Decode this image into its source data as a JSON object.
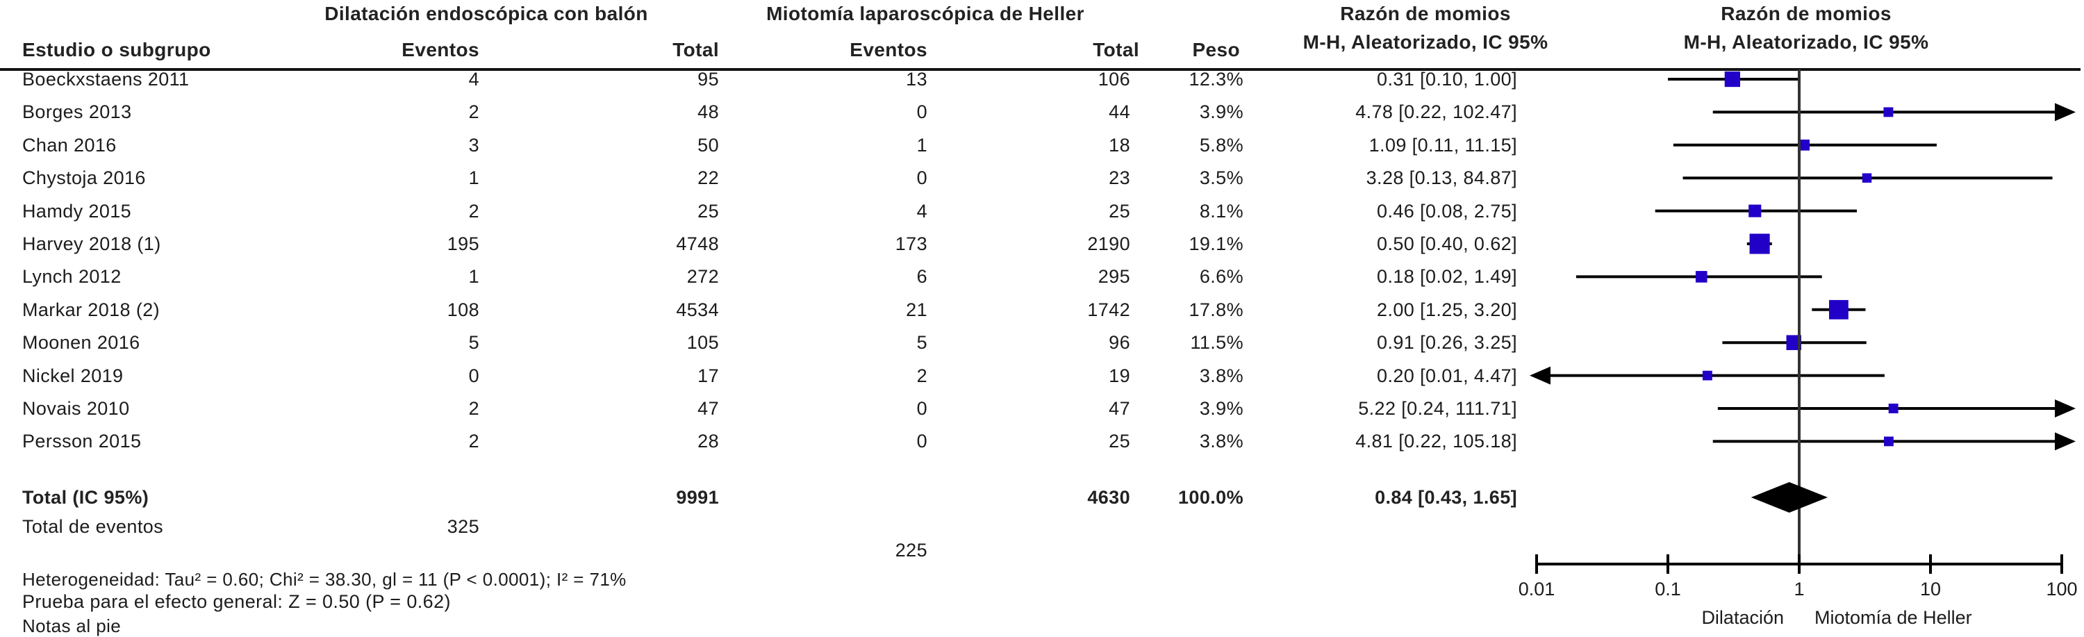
{
  "header": {
    "group1": "Dilatación endoscópica con balón",
    "group2": "Miotomía laparoscópica de Heller",
    "study_col": "Estudio o subgrupo",
    "events_col1": "Eventos",
    "total_col1": "Total",
    "events_col2": "Eventos",
    "total_col2": "Total",
    "weight_col": "Peso",
    "or_col_line1": "Razón de momios",
    "or_col_line2": "M-H, Aleatorizado, IC 95%",
    "plot_col_line1": "Razón de momios",
    "plot_col_line2": "M-H, Aleatorizado, IC 95%"
  },
  "chart_data": {
    "type": "forest",
    "effect_measure": "Razón de momios, M-H, Aleatorizado, IC 95%",
    "x_axis": {
      "scale": "log",
      "ticks": [
        0.01,
        0.1,
        1,
        10,
        100
      ],
      "tick_labels": [
        "0.01",
        "0.1",
        "1",
        "10",
        "100"
      ],
      "left_label": "Dilatación",
      "right_label": "Miotomía de Heller"
    },
    "studies": [
      {
        "name": "Boeckxstaens 2011",
        "e1": "4",
        "t1": "95",
        "e2": "13",
        "t2": "106",
        "weight": "12.3%",
        "weight_val": 12.3,
        "or": 0.31,
        "lo": 0.1,
        "hi": 1.0,
        "or_label": "0.31 [0.10, 1.00]"
      },
      {
        "name": "Borges 2013",
        "e1": "2",
        "t1": "48",
        "e2": "0",
        "t2": "44",
        "weight": "3.9%",
        "weight_val": 3.9,
        "or": 4.78,
        "lo": 0.22,
        "hi": 102.47,
        "or_label": "4.78 [0.22, 102.47]"
      },
      {
        "name": "Chan 2016",
        "e1": "3",
        "t1": "50",
        "e2": "1",
        "t2": "18",
        "weight": "5.8%",
        "weight_val": 5.8,
        "or": 1.09,
        "lo": 0.11,
        "hi": 11.15,
        "or_label": "1.09 [0.11, 11.15]"
      },
      {
        "name": "Chystoja 2016",
        "e1": "1",
        "t1": "22",
        "e2": "0",
        "t2": "23",
        "weight": "3.5%",
        "weight_val": 3.5,
        "or": 3.28,
        "lo": 0.13,
        "hi": 84.87,
        "or_label": "3.28 [0.13, 84.87]"
      },
      {
        "name": "Hamdy 2015",
        "e1": "2",
        "t1": "25",
        "e2": "4",
        "t2": "25",
        "weight": "8.1%",
        "weight_val": 8.1,
        "or": 0.46,
        "lo": 0.08,
        "hi": 2.75,
        "or_label": "0.46 [0.08, 2.75]"
      },
      {
        "name": "Harvey 2018 (1)",
        "e1": "195",
        "t1": "4748",
        "e2": "173",
        "t2": "2190",
        "weight": "19.1%",
        "weight_val": 19.1,
        "or": 0.5,
        "lo": 0.4,
        "hi": 0.62,
        "or_label": "0.50 [0.40, 0.62]"
      },
      {
        "name": "Lynch 2012",
        "e1": "1",
        "t1": "272",
        "e2": "6",
        "t2": "295",
        "weight": "6.6%",
        "weight_val": 6.6,
        "or": 0.18,
        "lo": 0.02,
        "hi": 1.49,
        "or_label": "0.18 [0.02, 1.49]"
      },
      {
        "name": "Markar 2018 (2)",
        "e1": "108",
        "t1": "4534",
        "e2": "21",
        "t2": "1742",
        "weight": "17.8%",
        "weight_val": 17.8,
        "or": 2.0,
        "lo": 1.25,
        "hi": 3.2,
        "or_label": "2.00 [1.25, 3.20]"
      },
      {
        "name": "Moonen 2016",
        "e1": "5",
        "t1": "105",
        "e2": "5",
        "t2": "96",
        "weight": "11.5%",
        "weight_val": 11.5,
        "or": 0.91,
        "lo": 0.26,
        "hi": 3.25,
        "or_label": "0.91 [0.26, 3.25]"
      },
      {
        "name": "Nickel 2019",
        "e1": "0",
        "t1": "17",
        "e2": "2",
        "t2": "19",
        "weight": "3.8%",
        "weight_val": 3.8,
        "or": 0.2,
        "lo": 0.01,
        "hi": 4.47,
        "or_label": "0.20 [0.01, 4.47]"
      },
      {
        "name": "Novais 2010",
        "e1": "2",
        "t1": "47",
        "e2": "0",
        "t2": "47",
        "weight": "3.9%",
        "weight_val": 3.9,
        "or": 5.22,
        "lo": 0.24,
        "hi": 111.71,
        "or_label": "5.22 [0.24, 111.71]"
      },
      {
        "name": "Persson 2015",
        "e1": "2",
        "t1": "28",
        "e2": "0",
        "t2": "25",
        "weight": "3.8%",
        "weight_val": 3.8,
        "or": 4.81,
        "lo": 0.22,
        "hi": 105.18,
        "or_label": "4.81 [0.22, 105.18]"
      }
    ],
    "total": {
      "label": "Total (IC 95%)",
      "t1": "9991",
      "t2": "4630",
      "weight": "100.0%",
      "or": 0.84,
      "lo": 0.43,
      "hi": 1.65,
      "or_label": "0.84 [0.43, 1.65]"
    },
    "total_events": {
      "label": "Total de eventos",
      "e1": "325",
      "e2": "225"
    }
  },
  "footer": {
    "heterogeneity": "Heterogeneidad: Tau² = 0.60; Chi² = 38.30, gl = 11 (P < 0.0001); I² = 71%",
    "overall_effect": "Prueba para el efecto general: Z = 0.50 (P = 0.62)",
    "footnotes": "Notas al pie"
  },
  "colors": {
    "marker_blue": "#2200C8",
    "line_black": "#000000",
    "null_line_gray": "#333333"
  }
}
